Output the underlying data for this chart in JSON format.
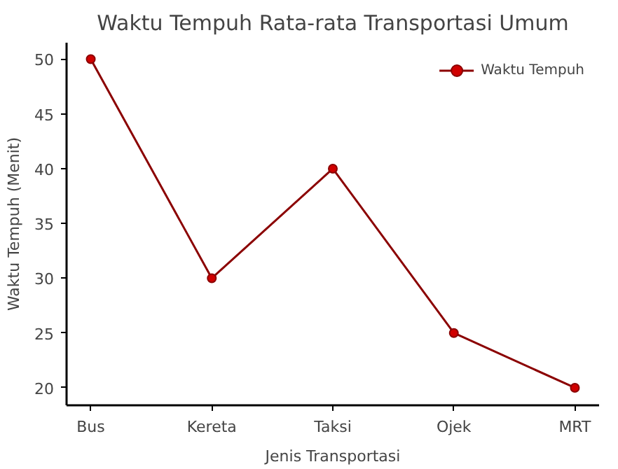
{
  "chart_data": {
    "type": "line",
    "title": "Waktu Tempuh Rata-rata Transportasi Umum",
    "xlabel": "Jenis Transportasi",
    "ylabel": "Waktu Tempuh (Menit)",
    "categories": [
      "Bus",
      "Kereta",
      "Taksi",
      "Ojek",
      "MRT"
    ],
    "series": [
      {
        "name": "Waktu Tempuh",
        "color": "#8b0000",
        "values": [
          50,
          30,
          40,
          25,
          20
        ]
      }
    ],
    "ylim": [
      18.4,
      51.5
    ],
    "yticks": [
      20,
      25,
      30,
      35,
      40,
      45,
      50
    ],
    "marker": "circle",
    "line_style": "solid",
    "legend": "top right",
    "grid": false
  }
}
